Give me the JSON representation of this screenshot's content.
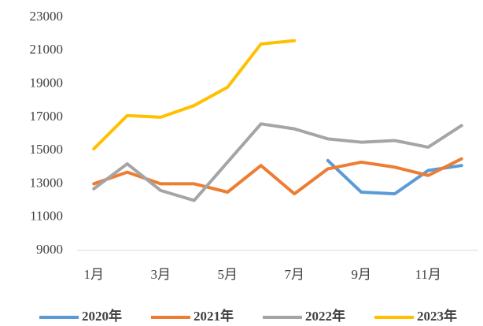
{
  "chart_data": {
    "type": "line",
    "categories": [
      "1月",
      null,
      "3月",
      null,
      "5月",
      null,
      "7月",
      null,
      "9月",
      null,
      "11月",
      null
    ],
    "series": [
      {
        "name": "2020年",
        "color": "#5b9bd5",
        "values": [
          null,
          null,
          null,
          null,
          null,
          null,
          null,
          14400,
          12500,
          12400,
          13800,
          14100
        ]
      },
      {
        "name": "2021年",
        "color": "#ed7d31",
        "values": [
          13000,
          13700,
          13000,
          13000,
          12500,
          14100,
          12400,
          13900,
          14300,
          14000,
          13500,
          14500
        ]
      },
      {
        "name": "2022年",
        "color": "#a5a5a5",
        "values": [
          12700,
          14200,
          12600,
          12000,
          14300,
          16600,
          16300,
          15700,
          15500,
          15600,
          15200,
          16500
        ]
      },
      {
        "name": "2023年",
        "color": "#ffc000",
        "values": [
          15100,
          17100,
          17000,
          17700,
          18800,
          21400,
          21600,
          null,
          null,
          null,
          null,
          null
        ]
      }
    ],
    "ylim": [
      9000,
      23000
    ],
    "yticks": [
      9000,
      11000,
      13000,
      15000,
      17000,
      19000,
      21000,
      23000
    ],
    "grid": false,
    "legend": "bottom"
  }
}
